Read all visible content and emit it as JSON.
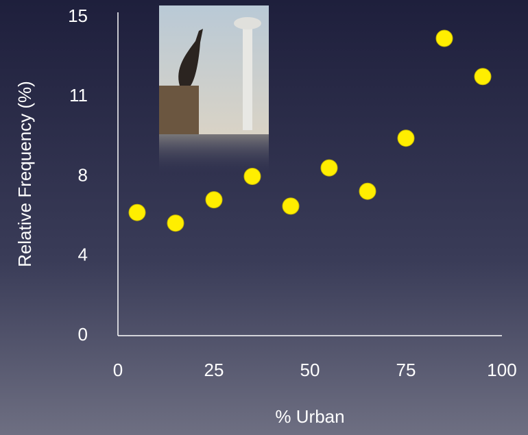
{
  "chart_data": {
    "type": "scatter",
    "x_label": "% Urban",
    "y_label": "Relative Frequency (%)",
    "x": [
      5,
      15,
      25,
      35,
      45,
      55,
      65,
      75,
      85,
      95
    ],
    "values": [
      5.8,
      5.3,
      6.4,
      7.5,
      6.1,
      7.9,
      6.8,
      9.3,
      14.0,
      12.2
    ],
    "color": "#ffee00",
    "xlim": [
      0,
      100
    ],
    "xticks": [
      0,
      25,
      50,
      75,
      100
    ],
    "ylim": [
      0,
      15
    ],
    "yticks": [
      0,
      {
        "value": 3.75,
        "label": "4"
      },
      {
        "value": 7.5,
        "label": "8"
      },
      {
        "value": 11.25,
        "label": "11"
      },
      15
    ],
    "grid": false
  }
}
